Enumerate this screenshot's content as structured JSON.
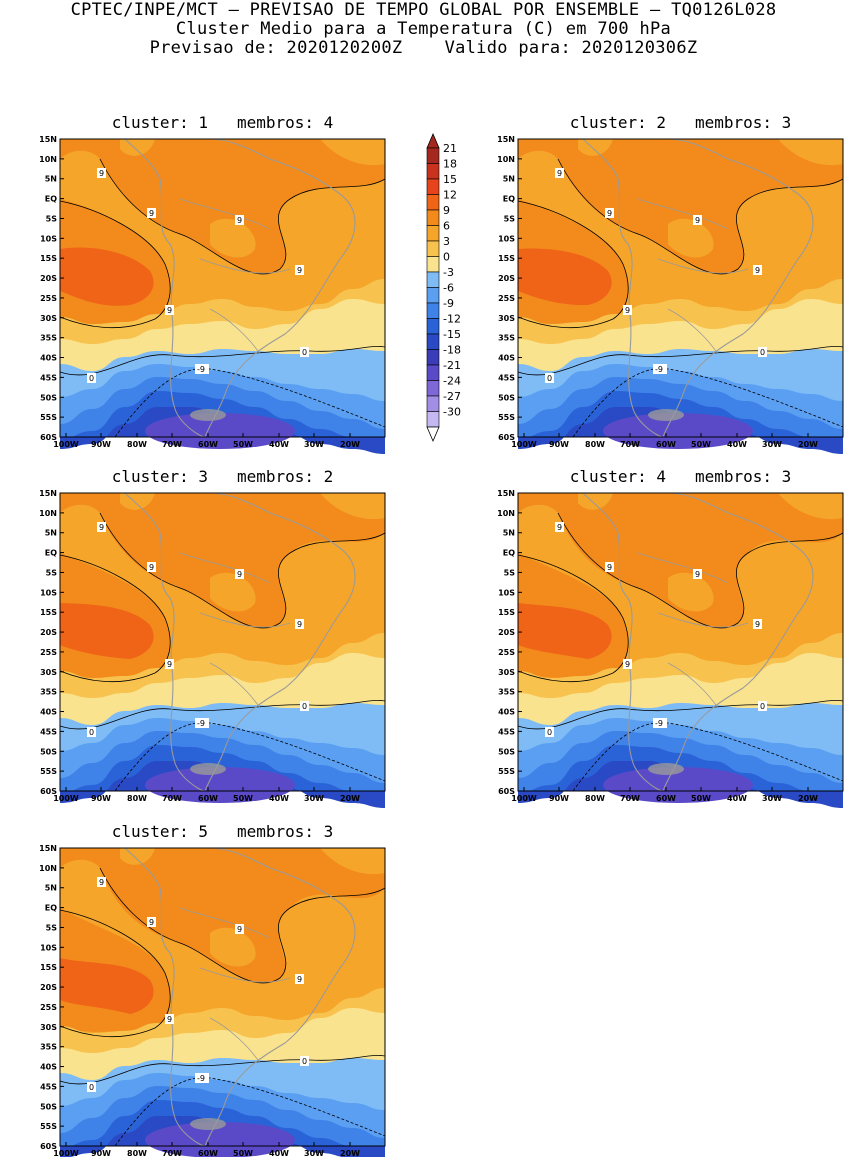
{
  "header": {
    "line1": "CPTEC/INPE/MCT – PREVISAO DE TEMPO GLOBAL POR ENSEMBLE – TQ0126L028",
    "line2": "Cluster Medio para a Temperatura (C) em 700 hPa",
    "line3": "Previsao de: 2020120200Z    Valido para: 2020120306Z"
  },
  "axes": {
    "lat_labels": [
      "15N",
      "10N",
      "5N",
      "EQ",
      "5S",
      "10S",
      "15S",
      "20S",
      "25S",
      "30S",
      "35S",
      "40S",
      "45S",
      "50S",
      "55S",
      "60S"
    ],
    "lon_labels": [
      "100W",
      "90W",
      "80W",
      "70W",
      "60W",
      "50W",
      "40W",
      "30W",
      "20W"
    ]
  },
  "colorbar": {
    "labels": [
      "21",
      "18",
      "15",
      "12",
      "9",
      "6",
      "3",
      "0",
      "-3",
      "-6",
      "-9",
      "-12",
      "-15",
      "-18",
      "-21",
      "-24",
      "-27",
      "-30"
    ],
    "colors": [
      "#a5281e",
      "#c9321c",
      "#e8441c",
      "#f06418",
      "#f28b1c",
      "#f5a52a",
      "#f8c24e",
      "#fae38e",
      "#7fbcf5",
      "#5a9ff2",
      "#3f82e8",
      "#2a63d8",
      "#2a49c4",
      "#3a3cb8",
      "#5a4ac8",
      "#7e68d8",
      "#a38ee6",
      "#c5b8f2"
    ]
  },
  "contour_labels": {
    "zero": "0",
    "nine": "9",
    "minus_nine": "-9"
  },
  "panels": [
    {
      "title": "cluster: 1   membros: 4"
    },
    {
      "title": "cluster: 2   membros: 3"
    },
    {
      "title": "cluster: 3   membros: 2"
    },
    {
      "title": "cluster: 4   membros: 3"
    },
    {
      "title": "cluster: 5   membros: 3"
    }
  ]
}
